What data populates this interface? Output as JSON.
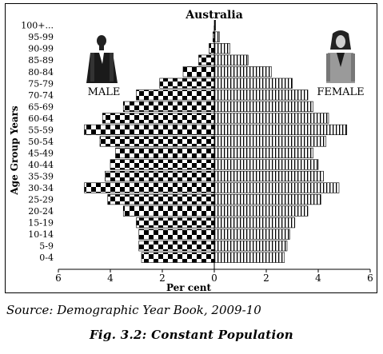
{
  "chart_data": {
    "type": "bar",
    "title": "Australia",
    "xlabel": "Per cent",
    "ylabel": "Age Group Years",
    "categories": [
      "0-4",
      "5-9",
      "10-14",
      "15-19",
      "20-24",
      "25-29",
      "30-34",
      "35-39",
      "40-44",
      "45-49",
      "50-54",
      "55-59",
      "60-64",
      "65-69",
      "70-74",
      "75-79",
      "80-84",
      "85-89",
      "90-99",
      "95-99",
      "100+..."
    ],
    "xticks": [
      "6",
      "4",
      "2",
      "0",
      "2",
      "4",
      "6"
    ],
    "xlim": [
      -6,
      6
    ],
    "series": [
      {
        "name": "MALE",
        "values": [
          2.8,
          2.9,
          2.9,
          3.0,
          3.5,
          4.1,
          5.0,
          4.2,
          4.0,
          3.8,
          4.4,
          5.0,
          4.3,
          3.5,
          3.0,
          2.1,
          1.2,
          0.6,
          0.2,
          0.05,
          0.0
        ]
      },
      {
        "name": "FEMALE",
        "values": [
          2.7,
          2.8,
          2.9,
          3.1,
          3.6,
          4.1,
          4.8,
          4.2,
          4.0,
          3.8,
          4.3,
          5.1,
          4.4,
          3.8,
          3.6,
          3.0,
          2.2,
          1.3,
          0.6,
          0.2,
          0.05
        ]
      }
    ],
    "legend": [
      "MALE",
      "FEMALE"
    ],
    "grid": false
  },
  "source": "Source: Demographic Year Book, 2009-10",
  "caption": "Fig. 3.2: Constant Population"
}
